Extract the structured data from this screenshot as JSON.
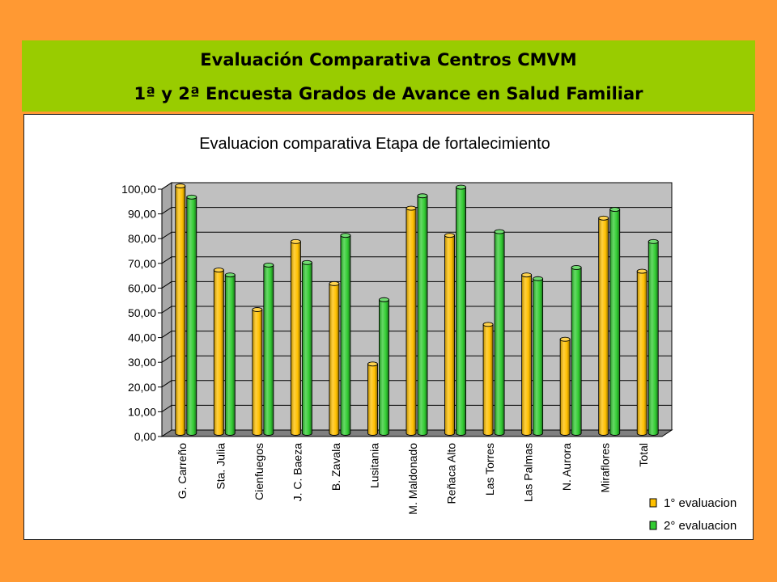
{
  "banner": {
    "line1": "Evaluación Comparativa Centros CMVM",
    "line2": "1ª y 2ª Encuesta Grados de Avance en Salud Familiar"
  },
  "colors": {
    "background": "#FF9933",
    "banner": "#99CC00",
    "series1": "#FFC000",
    "series2": "#33CC33",
    "plot_wall": "#C0C0C0",
    "plot_floor": "#808080"
  },
  "chart_data": {
    "type": "bar",
    "title": "Evaluacion comparativa Etapa de fortalecimiento",
    "categories": [
      "G. Carreño",
      "Sta. Julia",
      "Cienfuegos",
      "J. C. Baeza",
      "B. Zavala",
      "Lusitania",
      "M. Maldonado",
      "Reñaca Alto",
      "Las Torres",
      "Las Palmas",
      "N. Aurora",
      "Miraflores",
      "Total"
    ],
    "series": [
      {
        "name": "1° evaluacion",
        "values": [
          100,
          66,
          50,
          77.5,
          60.5,
          28,
          91,
          80,
          44,
          64,
          38,
          87,
          65.5
        ]
      },
      {
        "name": "2° evaluacion",
        "values": [
          95.5,
          64,
          68,
          69,
          80,
          54,
          96,
          99.5,
          81.5,
          62.5,
          67,
          90.5,
          77.5
        ]
      }
    ],
    "y_ticks": [
      "0,00",
      "10,00",
      "20,00",
      "30,00",
      "40,00",
      "50,00",
      "60,00",
      "70,00",
      "80,00",
      "90,00",
      "100,00"
    ],
    "ylim": [
      0,
      100
    ],
    "grid": true,
    "legend_position": "bottom-right",
    "bar_style": "3d-cylinder"
  }
}
